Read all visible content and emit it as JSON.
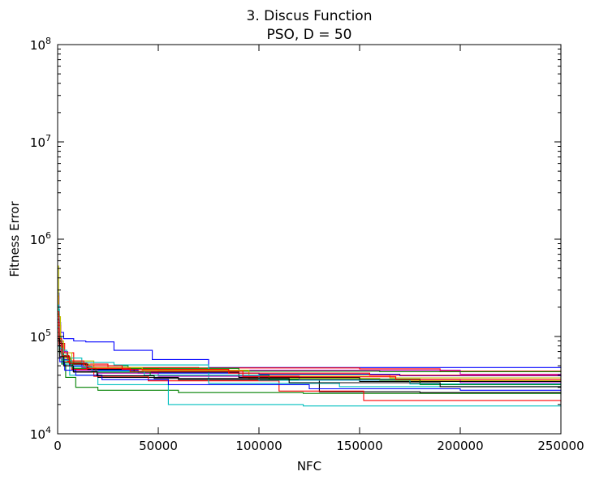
{
  "chart_data": {
    "type": "line",
    "title": "3.   Discus Function",
    "subtitle": "PSO, D = 50",
    "xlabel": "NFC",
    "ylabel": "Fitness Error",
    "xlim": [
      0,
      250000
    ],
    "ylim": [
      10000,
      100000000
    ],
    "yscale": "log",
    "grid": false,
    "x_ticks": [
      0,
      50000,
      100000,
      150000,
      200000,
      250000
    ],
    "x_tick_labels": [
      "0",
      "50000",
      "100000",
      "150000",
      "200000",
      "250000"
    ],
    "y_ticks": [
      10000,
      100000,
      1000000,
      10000000,
      100000000
    ],
    "y_tick_base": "10",
    "y_tick_exponents": [
      "4",
      "5",
      "6",
      "7",
      "8"
    ],
    "series": [
      {
        "color": "#0000ff",
        "x": [
          0,
          700,
          1500,
          3000,
          8000,
          14000,
          28000,
          47000,
          75000,
          250000
        ],
        "y": [
          280000,
          140000,
          110000,
          95000,
          90000,
          88000,
          72000,
          58000,
          48000,
          47000
        ]
      },
      {
        "color": "#008000",
        "x": [
          0,
          800,
          2000,
          4000,
          9000,
          20000,
          60000,
          122000,
          250000
        ],
        "y": [
          120000,
          75000,
          52000,
          38000,
          30000,
          28000,
          26500,
          26000,
          25500
        ]
      },
      {
        "color": "#ff0000",
        "x": [
          0,
          600,
          1500,
          3500,
          8000,
          25000,
          70000,
          150000,
          190000,
          250000
        ],
        "y": [
          260000,
          130000,
          85000,
          68000,
          52000,
          48000,
          47500,
          46500,
          44000,
          43000
        ]
      },
      {
        "color": "#00bfbf",
        "x": [
          0,
          900,
          2500,
          6000,
          20000,
          55000,
          122000,
          250000
        ],
        "y": [
          190000,
          70000,
          52000,
          40000,
          32000,
          20000,
          19300,
          19000
        ]
      },
      {
        "color": "#bf00bf",
        "x": [
          0,
          700,
          2000,
          5000,
          12000,
          30000,
          80000,
          200000,
          250000
        ],
        "y": [
          160000,
          90000,
          70000,
          56000,
          48000,
          46000,
          45000,
          41000,
          39500
        ]
      },
      {
        "color": "#bfbf00",
        "x": [
          0,
          500,
          1400,
          3000,
          7000,
          18000,
          50000,
          95000,
          160000,
          250000
        ],
        "y": [
          530000,
          160000,
          90000,
          68000,
          56000,
          47000,
          44500,
          37000,
          35000,
          34000
        ]
      },
      {
        "color": "#000000",
        "x": [
          0,
          1000,
          3000,
          8000,
          20000,
          60000,
          130000,
          180000,
          250000
        ],
        "y": [
          100000,
          62000,
          50000,
          43000,
          38000,
          36000,
          27000,
          26500,
          26000
        ]
      },
      {
        "color": "#0000ff",
        "x": [
          0,
          800,
          2500,
          6000,
          15000,
          40000,
          100000,
          170000,
          250000
        ],
        "y": [
          140000,
          80000,
          58000,
          50000,
          45000,
          42000,
          41000,
          39500,
          38500
        ]
      },
      {
        "color": "#008000",
        "x": [
          0,
          700,
          2200,
          5500,
          14000,
          35000,
          90000,
          160000,
          250000
        ],
        "y": [
          170000,
          90000,
          64000,
          54000,
          50000,
          47000,
          44000,
          43500,
          43000
        ]
      },
      {
        "color": "#ff0000",
        "x": [
          0,
          900,
          2800,
          7000,
          18000,
          45000,
          110000,
          152000,
          250000
        ],
        "y": [
          120000,
          72000,
          55000,
          46000,
          39000,
          35000,
          27500,
          22000,
          21000
        ]
      },
      {
        "color": "#00bfbf",
        "x": [
          0,
          600,
          1800,
          4500,
          12000,
          28000,
          75000,
          140000,
          250000
        ],
        "y": [
          210000,
          100000,
          72000,
          60000,
          54000,
          51000,
          33000,
          30500,
          30000
        ]
      },
      {
        "color": "#bf00bf",
        "x": [
          0,
          1000,
          3200,
          8000,
          20000,
          50000,
          120000,
          200000,
          250000
        ],
        "y": [
          90000,
          60000,
          50000,
          45000,
          42000,
          39000,
          36000,
          33500,
          33000
        ]
      },
      {
        "color": "#bfbf00",
        "x": [
          0,
          800,
          2600,
          6500,
          16000,
          42000,
          95000,
          165000,
          250000
        ],
        "y": [
          130000,
          78000,
          60000,
          52000,
          48000,
          45000,
          40000,
          37500,
          37000
        ]
      },
      {
        "color": "#000000",
        "x": [
          0,
          700,
          2400,
          6000,
          15000,
          38000,
          90000,
          150000,
          250000
        ],
        "y": [
          150000,
          85000,
          62000,
          52000,
          46000,
          43000,
          38000,
          34500,
          34000
        ]
      },
      {
        "color": "#0000ff",
        "x": [
          0,
          1100,
          3500,
          9000,
          22000,
          55000,
          125000,
          200000,
          250000
        ],
        "y": [
          80000,
          55000,
          45000,
          40000,
          36000,
          32000,
          29000,
          28000,
          27500
        ]
      },
      {
        "color": "#008000",
        "x": [
          0,
          900,
          3000,
          7500,
          19000,
          46000,
          105000,
          180000,
          250000
        ],
        "y": [
          110000,
          68000,
          54000,
          47000,
          43000,
          40000,
          36500,
          32000,
          31500
        ]
      },
      {
        "color": "#ff0000",
        "x": [
          0,
          650,
          2000,
          5000,
          13000,
          32000,
          85000,
          155000,
          250000
        ],
        "y": [
          180000,
          95000,
          68000,
          56000,
          50000,
          46000,
          42000,
          40000,
          39000
        ]
      },
      {
        "color": "#00bfbf",
        "x": [
          0,
          850,
          2700,
          6800,
          17000,
          43000,
          100000,
          175000,
          250000
        ],
        "y": [
          125000,
          76000,
          57000,
          49000,
          44000,
          40000,
          35500,
          32500,
          32000
        ]
      },
      {
        "color": "#ff0000",
        "x": [
          0,
          750,
          2300,
          5800,
          14500,
          36000,
          92000,
          168000,
          250000
        ],
        "y": [
          140000,
          82000,
          63000,
          53000,
          47000,
          44000,
          38500,
          36000,
          35500
        ]
      },
      {
        "color": "#000000",
        "x": [
          0,
          1000,
          3100,
          7800,
          19500,
          48000,
          115000,
          190000,
          250000
        ],
        "y": [
          95000,
          62000,
          50000,
          43500,
          39500,
          37000,
          33500,
          30500,
          30000
        ]
      }
    ]
  }
}
